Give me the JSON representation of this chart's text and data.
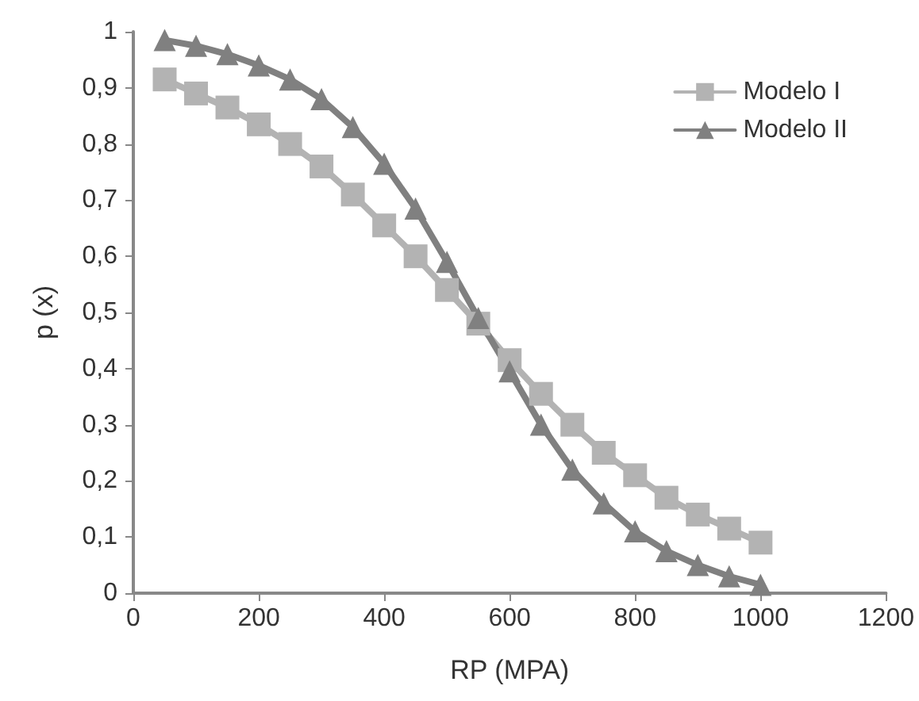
{
  "chart_data": {
    "type": "line",
    "xlabel": "RP (MPA)",
    "ylabel": "p (x)",
    "x": [
      50,
      100,
      150,
      200,
      250,
      300,
      350,
      400,
      450,
      500,
      550,
      600,
      650,
      700,
      750,
      800,
      850,
      900,
      950,
      1000
    ],
    "series": [
      {
        "name": "Modelo I",
        "color": "#b3b3b3",
        "marker": "square",
        "values": [
          0.915,
          0.89,
          0.865,
          0.835,
          0.8,
          0.76,
          0.71,
          0.655,
          0.6,
          0.54,
          0.48,
          0.415,
          0.355,
          0.3,
          0.25,
          0.21,
          0.17,
          0.14,
          0.115,
          0.09
        ]
      },
      {
        "name": "Modelo II",
        "color": "#808080",
        "marker": "triangle",
        "values": [
          0.985,
          0.975,
          0.96,
          0.94,
          0.915,
          0.88,
          0.83,
          0.765,
          0.685,
          0.59,
          0.49,
          0.395,
          0.3,
          0.22,
          0.16,
          0.11,
          0.075,
          0.05,
          0.03,
          0.015
        ]
      }
    ],
    "xlim": [
      0,
      1200
    ],
    "xticks": [
      0,
      200,
      400,
      600,
      800,
      1000,
      1200
    ],
    "ylim": [
      0,
      1
    ],
    "yticks": [
      0,
      {
        "value": 0.1,
        "label": "0,1"
      },
      {
        "value": 0.2,
        "label": "0,2"
      },
      {
        "value": 0.3,
        "label": "0,3"
      },
      {
        "value": 0.4,
        "label": "0,4"
      },
      {
        "value": 0.5,
        "label": "0,5"
      },
      {
        "value": 0.6,
        "label": "0,6"
      },
      {
        "value": 0.7,
        "label": "0,7"
      },
      {
        "value": 0.8,
        "label": "0,8"
      },
      {
        "value": 0.9,
        "label": "0,9"
      },
      1
    ],
    "grid": false,
    "legend": "top right",
    "line_style": "solid"
  }
}
